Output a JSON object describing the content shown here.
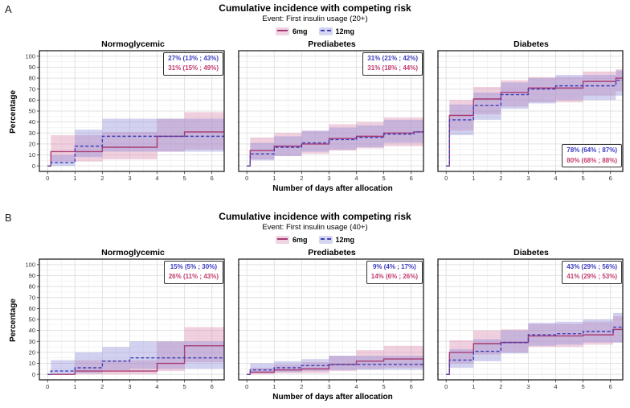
{
  "colors": {
    "line_6mg": "#a83a72",
    "line_12mg": "#3f3fb8",
    "band_6mg": "#d884ab",
    "band_12mg": "#8a8ad8",
    "annotation_blue": "#3a3ac0",
    "annotation_red": "#c23a6e",
    "grid_major": "#e2e2e2",
    "grid_minor": "#f0f0f0",
    "panel_border": "#222222",
    "tick_text": "#333333"
  },
  "chart_data": {
    "type": "line",
    "step": true,
    "grid": "on",
    "xlim": [
      -0.3,
      6.45
    ],
    "ylim": [
      0,
      100
    ],
    "xticks": [
      0,
      1,
      2,
      3,
      4,
      5,
      6
    ],
    "yticks": [
      0,
      10,
      20,
      30,
      40,
      50,
      60,
      70,
      80,
      90,
      100
    ],
    "panels": [
      {
        "panel_label": "A",
        "title": "Cumulative incidence with competing risk",
        "subtitle": "Event: First insulin usage (20+)",
        "legend": [
          {
            "label": "6mg"
          },
          {
            "label": "12mg"
          }
        ],
        "xlabel": "Number of days after allocation",
        "ylabel": "Percentage",
        "subplots": [
          {
            "title": "Normoglycemic",
            "annotation": {
              "position": "top-right",
              "lines": [
                {
                  "series": "12mg",
                  "text": "27% (13% ; 43%)"
                },
                {
                  "series": "6mg",
                  "text": "31% (15% ; 49%)"
                }
              ]
            },
            "series": [
              {
                "name": "6mg",
                "line": [
                  [
                    0,
                    0
                  ],
                  [
                    0.12,
                    13
                  ],
                  [
                    2,
                    17
                  ],
                  [
                    4,
                    27
                  ],
                  [
                    5,
                    31
                  ]
                ],
                "band": [
                  [
                    0.12,
                    4,
                    28
                  ],
                  [
                    2,
                    6,
                    31
                  ],
                  [
                    4,
                    13,
                    43
                  ],
                  [
                    5,
                    15,
                    49
                  ]
                ]
              },
              {
                "name": "12mg",
                "line": [
                  [
                    0,
                    0
                  ],
                  [
                    0.12,
                    3
                  ],
                  [
                    1,
                    18
                  ],
                  [
                    2,
                    27
                  ]
                ],
                "band": [
                  [
                    0.12,
                    0,
                    10
                  ],
                  [
                    1,
                    8,
                    33
                  ],
                  [
                    2,
                    13,
                    43
                  ]
                ]
              }
            ]
          },
          {
            "title": "Prediabetes",
            "annotation": {
              "position": "top-right",
              "lines": [
                {
                  "series": "12mg",
                  "text": "31% (21% ; 42%)"
                },
                {
                  "series": "6mg",
                  "text": "31% (18% ; 44%)"
                }
              ]
            },
            "series": [
              {
                "name": "6mg",
                "line": [
                  [
                    0,
                    0
                  ],
                  [
                    0.12,
                    14
                  ],
                  [
                    1,
                    18
                  ],
                  [
                    2,
                    20
                  ],
                  [
                    3,
                    25
                  ],
                  [
                    4,
                    27
                  ],
                  [
                    5,
                    30
                  ],
                  [
                    6.1,
                    31
                  ]
                ],
                "band": [
                  [
                    0.12,
                    6,
                    26
                  ],
                  [
                    1,
                    9,
                    30
                  ],
                  [
                    2,
                    11,
                    32
                  ],
                  [
                    3,
                    14,
                    38
                  ],
                  [
                    4,
                    16,
                    40
                  ],
                  [
                    5,
                    18,
                    44
                  ]
                ]
              },
              {
                "name": "12mg",
                "line": [
                  [
                    0,
                    0
                  ],
                  [
                    0.12,
                    11
                  ],
                  [
                    1,
                    17
                  ],
                  [
                    2,
                    21
                  ],
                  [
                    3,
                    24
                  ],
                  [
                    4,
                    26
                  ],
                  [
                    5,
                    29
                  ],
                  [
                    6.1,
                    31
                  ]
                ],
                "band": [
                  [
                    0.12,
                    5,
                    21
                  ],
                  [
                    1,
                    9,
                    27
                  ],
                  [
                    2,
                    13,
                    32
                  ],
                  [
                    3,
                    15,
                    35
                  ],
                  [
                    4,
                    17,
                    37
                  ],
                  [
                    5,
                    21,
                    42
                  ]
                ]
              }
            ]
          },
          {
            "title": "Diabetes",
            "annotation": {
              "position": "bottom-right",
              "lines": [
                {
                  "series": "12mg",
                  "text": "78% (64% ; 87%)"
                },
                {
                  "series": "6mg",
                  "text": "80% (68% ; 88%)"
                }
              ]
            },
            "series": [
              {
                "name": "6mg",
                "line": [
                  [
                    0,
                    0
                  ],
                  [
                    0.12,
                    46
                  ],
                  [
                    1,
                    61
                  ],
                  [
                    2,
                    67
                  ],
                  [
                    3,
                    71
                  ],
                  [
                    5,
                    77
                  ],
                  [
                    6.2,
                    80
                  ]
                ],
                "band": [
                  [
                    0.12,
                    32,
                    60
                  ],
                  [
                    1,
                    47,
                    72
                  ],
                  [
                    2,
                    54,
                    78
                  ],
                  [
                    3,
                    58,
                    81
                  ],
                  [
                    5,
                    64,
                    86
                  ],
                  [
                    6.2,
                    68,
                    88
                  ]
                ]
              },
              {
                "name": "12mg",
                "line": [
                  [
                    0,
                    0
                  ],
                  [
                    0.12,
                    42
                  ],
                  [
                    1,
                    55
                  ],
                  [
                    2,
                    65
                  ],
                  [
                    3,
                    70
                  ],
                  [
                    4,
                    73
                  ],
                  [
                    6.2,
                    78
                  ]
                ],
                "band": [
                  [
                    0.12,
                    28,
                    56
                  ],
                  [
                    1,
                    42,
                    67
                  ],
                  [
                    2,
                    52,
                    76
                  ],
                  [
                    3,
                    57,
                    80
                  ],
                  [
                    4,
                    60,
                    83
                  ],
                  [
                    6.2,
                    64,
                    87
                  ]
                ]
              }
            ]
          }
        ]
      },
      {
        "panel_label": "B",
        "title": "Cumulative incidence with competing risk",
        "subtitle": "Event: First insulin usage (40+)",
        "legend": [
          {
            "label": "6mg"
          },
          {
            "label": "12mg"
          }
        ],
        "xlabel": "Number of days after allocation",
        "ylabel": "Percentage",
        "subplots": [
          {
            "title": "Normoglycemic",
            "annotation": {
              "position": "top-right",
              "lines": [
                {
                  "series": "12mg",
                  "text": "15% (5% ; 30%)"
                },
                {
                  "series": "6mg",
                  "text": "26% (11% ; 43%)"
                }
              ]
            },
            "series": [
              {
                "name": "6mg",
                "line": [
                  [
                    0,
                    0
                  ],
                  [
                    1,
                    3
                  ],
                  [
                    4,
                    10
                  ],
                  [
                    5,
                    26
                  ]
                ],
                "band": [
                  [
                    1,
                    0,
                    13
                  ],
                  [
                    4,
                    3,
                    30
                  ],
                  [
                    5,
                    11,
                    43
                  ]
                ]
              },
              {
                "name": "12mg",
                "line": [
                  [
                    0,
                    0
                  ],
                  [
                    0.12,
                    3
                  ],
                  [
                    1,
                    6
                  ],
                  [
                    2,
                    12
                  ],
                  [
                    3,
                    15
                  ]
                ],
                "band": [
                  [
                    0.12,
                    0,
                    13
                  ],
                  [
                    1,
                    1,
                    20
                  ],
                  [
                    2,
                    4,
                    25
                  ],
                  [
                    3,
                    5,
                    30
                  ]
                ]
              }
            ]
          },
          {
            "title": "Prediabetes",
            "annotation": {
              "position": "top-right",
              "lines": [
                {
                  "series": "12mg",
                  "text": "9% (4% ; 17%)"
                },
                {
                  "series": "6mg",
                  "text": "14% (6% ; 26%)"
                }
              ]
            },
            "series": [
              {
                "name": "6mg",
                "line": [
                  [
                    0,
                    0
                  ],
                  [
                    0.12,
                    2
                  ],
                  [
                    1,
                    4
                  ],
                  [
                    2,
                    5
                  ],
                  [
                    3,
                    9
                  ],
                  [
                    4,
                    12
                  ],
                  [
                    5,
                    14
                  ]
                ],
                "band": [
                  [
                    0.12,
                    0,
                    6
                  ],
                  [
                    1,
                    1,
                    9
                  ],
                  [
                    2,
                    1,
                    11
                  ],
                  [
                    3,
                    3,
                    17
                  ],
                  [
                    4,
                    5,
                    22
                  ],
                  [
                    5,
                    6,
                    26
                  ]
                ]
              },
              {
                "name": "12mg",
                "line": [
                  [
                    0,
                    0
                  ],
                  [
                    0.12,
                    4
                  ],
                  [
                    1,
                    6
                  ],
                  [
                    2,
                    8
                  ],
                  [
                    3,
                    9
                  ]
                ],
                "band": [
                  [
                    0.12,
                    1,
                    10
                  ],
                  [
                    1,
                    2,
                    12
                  ],
                  [
                    2,
                    3,
                    14
                  ],
                  [
                    3,
                    4,
                    17
                  ]
                ]
              }
            ]
          },
          {
            "title": "Diabetes",
            "annotation": {
              "position": "top-right",
              "lines": [
                {
                  "series": "12mg",
                  "text": "43% (29% ; 56%)"
                },
                {
                  "series": "6mg",
                  "text": "41% (29% ; 53%)"
                }
              ]
            },
            "series": [
              {
                "name": "6mg",
                "line": [
                  [
                    0,
                    0
                  ],
                  [
                    0.12,
                    20
                  ],
                  [
                    1,
                    28
                  ],
                  [
                    2,
                    29
                  ],
                  [
                    3,
                    35
                  ],
                  [
                    5,
                    36
                  ],
                  [
                    6.1,
                    41
                  ]
                ],
                "band": [
                  [
                    0.12,
                    10,
                    31
                  ],
                  [
                    1,
                    18,
                    40
                  ],
                  [
                    2,
                    20,
                    41
                  ],
                  [
                    3,
                    25,
                    46
                  ],
                  [
                    5,
                    27,
                    48
                  ],
                  [
                    6.1,
                    29,
                    53
                  ]
                ]
              },
              {
                "name": "12mg",
                "line": [
                  [
                    0,
                    0
                  ],
                  [
                    0.12,
                    13
                  ],
                  [
                    1,
                    21
                  ],
                  [
                    2,
                    29
                  ],
                  [
                    3,
                    36
                  ],
                  [
                    4,
                    37
                  ],
                  [
                    5,
                    39
                  ],
                  [
                    6.1,
                    43
                  ]
                ],
                "band": [
                  [
                    0.12,
                    6,
                    23
                  ],
                  [
                    1,
                    12,
                    32
                  ],
                  [
                    2,
                    19,
                    40
                  ],
                  [
                    3,
                    26,
                    47
                  ],
                  [
                    4,
                    27,
                    48
                  ],
                  [
                    5,
                    29,
                    50
                  ],
                  [
                    6.1,
                    29,
                    56
                  ]
                ]
              }
            ]
          }
        ]
      }
    ]
  }
}
